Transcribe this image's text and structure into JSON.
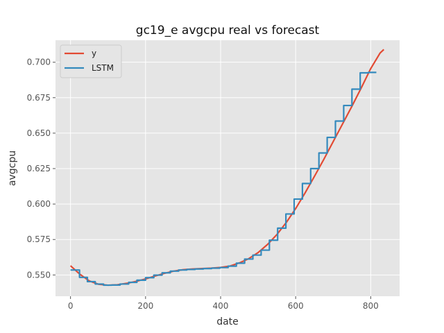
{
  "chart_data": {
    "type": "line",
    "title": "gc19_e avgcpu real vs forecast",
    "xlabel": "date",
    "ylabel": "avgcpu",
    "xlim": [
      -40,
      877
    ],
    "ylim": [
      0.535,
      0.7155
    ],
    "xticks": [
      0,
      200,
      400,
      600,
      800
    ],
    "xtick_labels": [
      "0",
      "200",
      "400",
      "600",
      "800"
    ],
    "yticks": [
      0.55,
      0.575,
      0.6,
      0.625,
      0.65,
      0.675,
      0.7
    ],
    "ytick_labels": [
      "0.550",
      "0.575",
      "0.600",
      "0.625",
      "0.650",
      "0.675",
      "0.700"
    ],
    "grid": true,
    "legend_position": "top-left",
    "series": [
      {
        "name": "y",
        "color": "#e24a33",
        "style": "line",
        "x": [
          0,
          25,
          50,
          75,
          100,
          125,
          150,
          175,
          200,
          225,
          250,
          275,
          300,
          325,
          350,
          375,
          400,
          425,
          450,
          475,
          500,
          525,
          550,
          575,
          600,
          625,
          650,
          675,
          700,
          725,
          750,
          775,
          800,
          825,
          835
        ],
        "values": [
          0.5565,
          0.5505,
          0.5458,
          0.5434,
          0.5428,
          0.5431,
          0.5441,
          0.5455,
          0.5472,
          0.5492,
          0.5511,
          0.5527,
          0.5537,
          0.5542,
          0.5545,
          0.5548,
          0.5553,
          0.5563,
          0.5585,
          0.5615,
          0.5658,
          0.5715,
          0.5785,
          0.587,
          0.5968,
          0.6078,
          0.6195,
          0.6315,
          0.644,
          0.6565,
          0.669,
          0.682,
          0.6955,
          0.7065,
          0.709
        ]
      },
      {
        "name": "LSTM",
        "color": "#348abd",
        "style": "step",
        "x": [
          0,
          24,
          45,
          66,
          88,
          110,
          132,
          155,
          177,
          200,
          222,
          244,
          266,
          288,
          310,
          332,
          354,
          376,
          398,
          420,
          442,
          464,
          486,
          508,
          530,
          552,
          574,
          596,
          618,
          640,
          662,
          684,
          706,
          728,
          750,
          772,
          794,
          815
        ],
        "values": [
          0.5535,
          0.5483,
          0.5453,
          0.5436,
          0.5428,
          0.5429,
          0.5436,
          0.5448,
          0.5463,
          0.5481,
          0.5499,
          0.5515,
          0.5527,
          0.5535,
          0.5539,
          0.5542,
          0.5545,
          0.5548,
          0.5552,
          0.5562,
          0.5583,
          0.5612,
          0.564,
          0.5675,
          0.5745,
          0.583,
          0.593,
          0.6035,
          0.6145,
          0.625,
          0.636,
          0.647,
          0.6585,
          0.6695,
          0.681,
          0.6925,
          0.6928,
          0.6928
        ]
      }
    ]
  },
  "colors": {
    "plot_background": "#e5e5e5",
    "grid": "#ffffff"
  }
}
